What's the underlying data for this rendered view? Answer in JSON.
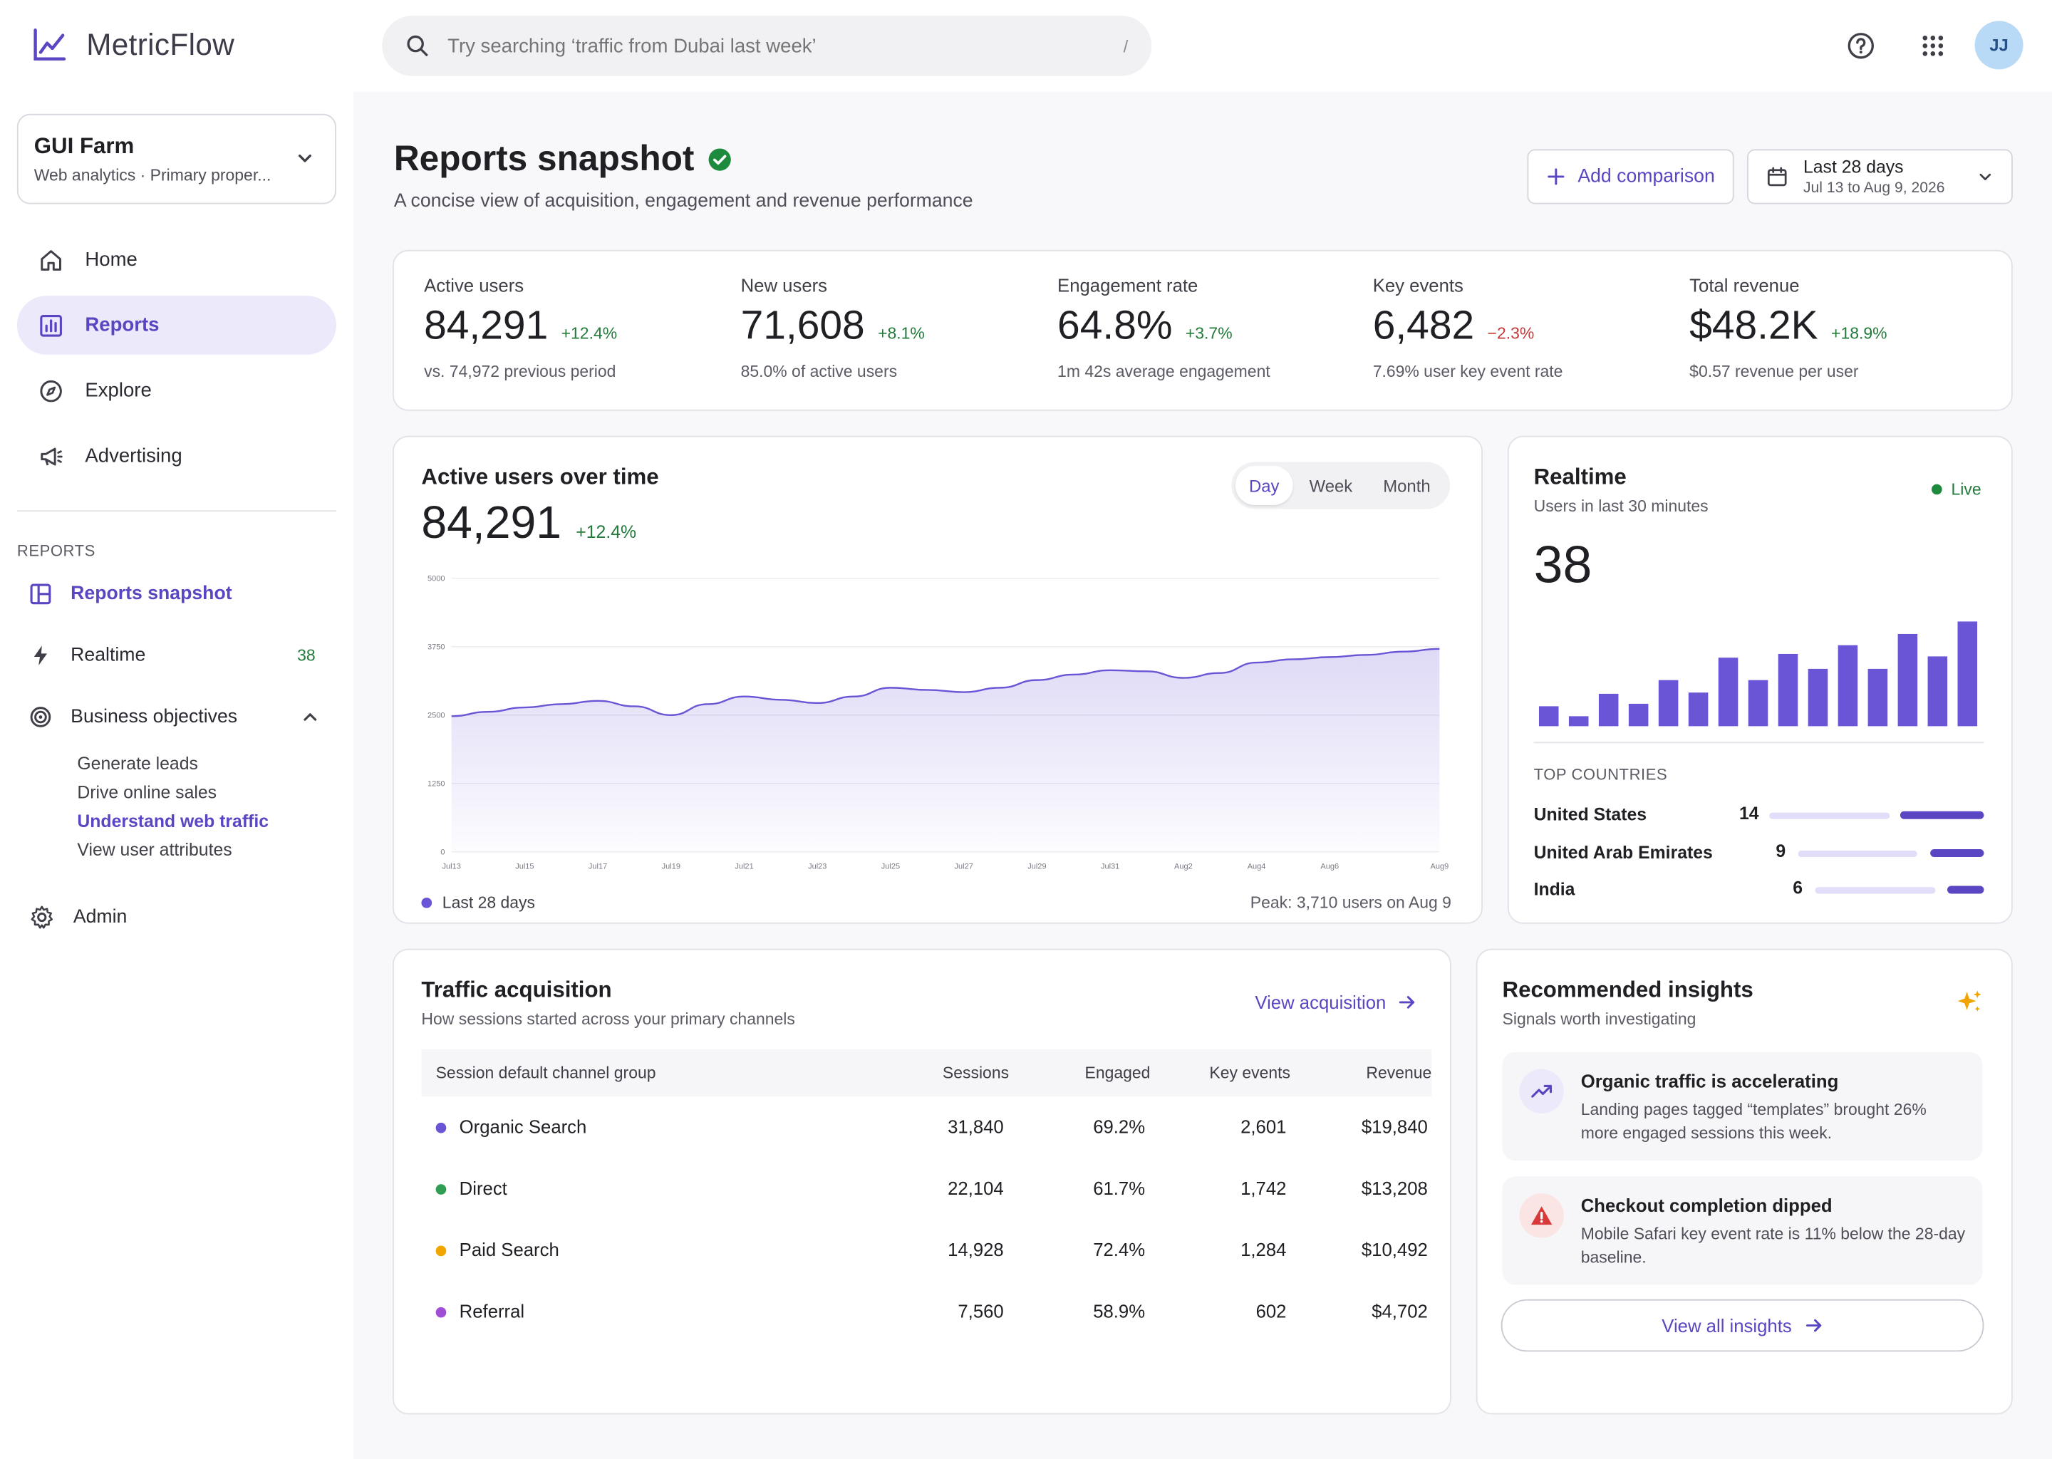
{
  "app": {
    "name": "MetricFlow"
  },
  "search": {
    "placeholder": "Try searching ‘traffic from Dubai last week’",
    "shortcut": "/"
  },
  "user": {
    "initials": "JJ"
  },
  "property": {
    "name": "GUI Farm",
    "subtitle": "Web analytics · Primary proper..."
  },
  "nav": {
    "home": "Home",
    "reports": "Reports",
    "explore": "Explore",
    "advertising": "Advertising"
  },
  "reports_section": {
    "heading": "REPORTS",
    "snapshot": "Reports snapshot",
    "realtime": "Realtime",
    "realtime_badge": "38",
    "objectives": "Business objectives",
    "objectives_items": [
      "Generate leads",
      "Drive online sales",
      "Understand web traffic",
      "View user attributes"
    ],
    "admin": "Admin"
  },
  "page": {
    "title": "Reports snapshot",
    "description": "A concise view of acquisition, engagement and revenue performance",
    "add_comparison": "Add comparison",
    "date_range": "Last 28 days",
    "date_sub": "Jul 13 to Aug 9, 2026"
  },
  "kpis": [
    {
      "label": "Active users",
      "value": "84,291",
      "delta": "+12.4%",
      "foot": "vs. 74,972 previous period"
    },
    {
      "label": "New users",
      "value": "71,608",
      "delta": "+8.1%",
      "foot": "85.0% of active users"
    },
    {
      "label": "Engagement rate",
      "value": "64.8%",
      "delta": "+3.7%",
      "foot": "1m 42s average engagement"
    },
    {
      "label": "Key events",
      "value": "6,482",
      "delta": "−2.3%",
      "foot": "7.69% user key event rate"
    },
    {
      "label": "Total revenue",
      "value": "$48.2K",
      "delta": "+18.9%",
      "foot": "$0.57 revenue per user"
    }
  ],
  "active_chart": {
    "title": "Active users over time",
    "value": "84,291",
    "delta": "+12.4%",
    "tabs": [
      "Day",
      "Week",
      "Month"
    ],
    "legend": "Last 28 days",
    "peak": "Peak: 3,710 users on Aug 9",
    "accent": "#6a55d6"
  },
  "chart_data": {
    "type": "area",
    "x": [
      "Jul13",
      "Jul14",
      "Jul15",
      "Jul16",
      "Jul17",
      "Jul18",
      "Jul19",
      "Jul20",
      "Jul21",
      "Jul22",
      "Jul23",
      "Jul24",
      "Jul25",
      "Jul26",
      "Jul27",
      "Jul28",
      "Jul29",
      "Jul30",
      "Jul31",
      "Aug1",
      "Aug2",
      "Aug3",
      "Aug4",
      "Aug5",
      "Aug6",
      "Aug7",
      "Aug8",
      "Aug9"
    ],
    "xticks": [
      "Jul13",
      "Jul15",
      "Jul17",
      "Jul19",
      "Jul21",
      "Jul23",
      "Jul25",
      "Jul27",
      "Jul29",
      "Jul31",
      "Aug2",
      "Aug4",
      "Aug6",
      "Aug9"
    ],
    "yticks": [
      "0",
      "1250",
      "2500",
      "3750",
      "5000"
    ],
    "values": [
      2480,
      2560,
      2640,
      2700,
      2760,
      2660,
      2500,
      2700,
      2840,
      2780,
      2720,
      2840,
      3000,
      2960,
      2920,
      3000,
      3140,
      3240,
      3320,
      3300,
      3180,
      3270,
      3460,
      3520,
      3560,
      3600,
      3660,
      3710
    ],
    "ylim": [
      0,
      5000
    ]
  },
  "realtime": {
    "title": "Realtime",
    "subtitle": "Users in last 30 minutes",
    "live": "Live",
    "value": "38",
    "bars": [
      16,
      8,
      26,
      18,
      37,
      27,
      55,
      37,
      58,
      46,
      65,
      46,
      74,
      56,
      84,
      55
    ],
    "countries_heading": "TOP COUNTRIES",
    "countries": [
      {
        "name": "United States",
        "value": "14"
      },
      {
        "name": "United Arab Emirates",
        "value": "9"
      },
      {
        "name": "India",
        "value": "6"
      }
    ]
  },
  "acquisition": {
    "title": "Traffic acquisition",
    "subtitle": "How sessions started across your primary channels",
    "link": "View acquisition",
    "headers": [
      "Session default channel group",
      "Sessions",
      "Engaged",
      "Key events",
      "Revenue"
    ],
    "rows": [
      {
        "channel": "Organic Search",
        "sessions": "31,840",
        "engaged": "69.2%",
        "key": "2,601",
        "revenue": "$19,840",
        "color": "#6a55d6"
      },
      {
        "channel": "Direct",
        "sessions": "22,104",
        "engaged": "61.7%",
        "key": "1,742",
        "revenue": "$13,208",
        "color": "#2f9e52"
      },
      {
        "channel": "Paid Search",
        "sessions": "14,928",
        "engaged": "72.4%",
        "key": "1,284",
        "revenue": "$10,492",
        "color": "#f0a500"
      },
      {
        "channel": "Referral",
        "sessions": "7,560",
        "engaged": "58.9%",
        "key": "602",
        "revenue": "$4,702",
        "color": "#a04ed6"
      }
    ]
  },
  "insights": {
    "title": "Recommended insights",
    "subtitle": "Signals worth investigating",
    "items": [
      {
        "title": "Organic traffic is accelerating",
        "body": "Landing pages tagged “templates” brought 26% more engaged sessions this week."
      },
      {
        "title": "Checkout completion dipped",
        "body": "Mobile Safari key event rate is 11% below the 28-day baseline."
      }
    ],
    "button": "View all insights"
  }
}
